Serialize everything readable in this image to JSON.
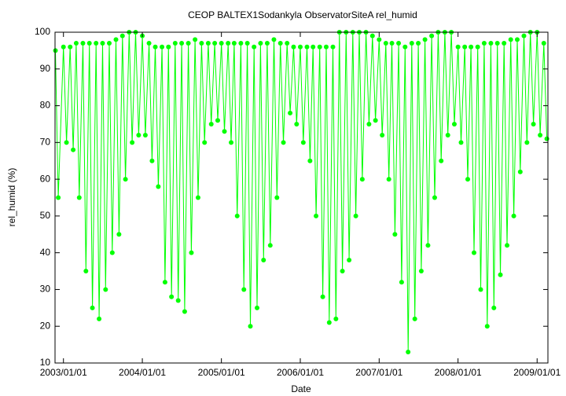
{
  "chart_data": {
    "type": "line",
    "title": "CEOP BALTEX1Sodankyla ObservatorSiteA  rel_humid",
    "xlabel": "Date",
    "ylabel": "rel_humid (%)",
    "xlim": [
      "2002/11/23",
      "2009/02/20"
    ],
    "xticks": [
      "2003/01/01",
      "2004/01/01",
      "2005/01/01",
      "2006/01/01",
      "2007/01/01",
      "2008/01/01",
      "2009/01/01"
    ],
    "ylim": [
      10,
      100
    ],
    "yticks": [
      10,
      20,
      30,
      40,
      50,
      60,
      70,
      80,
      90,
      100
    ],
    "grid": false,
    "series": [
      {
        "name": "rel_humid",
        "color": "#00ff00",
        "x": [
          "2002/11/25",
          "2002/12/08",
          "2003/01/01",
          "2003/01/15",
          "2003/02/01",
          "2003/02/15",
          "2003/03/01",
          "2003/03/15",
          "2003/04/01",
          "2003/04/15",
          "2003/05/01",
          "2003/05/15",
          "2003/06/01",
          "2003/06/15",
          "2003/07/01",
          "2003/07/15",
          "2003/08/01",
          "2003/08/15",
          "2003/09/01",
          "2003/09/15",
          "2003/10/01",
          "2003/10/15",
          "2003/11/01",
          "2003/11/15",
          "2003/12/01",
          "2003/12/15",
          "2004/01/01",
          "2004/01/15",
          "2004/02/01",
          "2004/02/15",
          "2004/03/01",
          "2004/03/15",
          "2004/04/01",
          "2004/04/15",
          "2004/05/01",
          "2004/05/15",
          "2004/06/01",
          "2004/06/15",
          "2004/07/01",
          "2004/07/15",
          "2004/08/01",
          "2004/08/15",
          "2004/09/01",
          "2004/09/15",
          "2004/10/01",
          "2004/10/15",
          "2004/11/01",
          "2004/11/15",
          "2004/12/01",
          "2004/12/15",
          "2005/01/01",
          "2005/01/15",
          "2005/02/01",
          "2005/02/15",
          "2005/03/01",
          "2005/03/15",
          "2005/04/01",
          "2005/04/15",
          "2005/05/01",
          "2005/05/15",
          "2005/06/01",
          "2005/06/15",
          "2005/07/01",
          "2005/07/15",
          "2005/08/01",
          "2005/08/15",
          "2005/09/01",
          "2005/09/15",
          "2005/10/01",
          "2005/10/15",
          "2005/11/01",
          "2005/11/15",
          "2005/12/01",
          "2005/12/15",
          "2006/01/01",
          "2006/01/15",
          "2006/02/01",
          "2006/02/15",
          "2006/03/01",
          "2006/03/15",
          "2006/04/01",
          "2006/04/15",
          "2006/05/01",
          "2006/05/15",
          "2006/06/01",
          "2006/06/15",
          "2006/07/01",
          "2006/07/15",
          "2006/08/01",
          "2006/08/15",
          "2006/09/01",
          "2006/09/15",
          "2006/10/01",
          "2006/10/15",
          "2006/11/01",
          "2006/11/15",
          "2006/12/01",
          "2006/12/15",
          "2007/01/01",
          "2007/01/15",
          "2007/02/01",
          "2007/02/15",
          "2007/03/01",
          "2007/03/15",
          "2007/04/01",
          "2007/04/15",
          "2007/05/01",
          "2007/05/15",
          "2007/06/01",
          "2007/06/15",
          "2007/07/01",
          "2007/07/15",
          "2007/08/01",
          "2007/08/15",
          "2007/09/01",
          "2007/09/15",
          "2007/10/01",
          "2007/10/15",
          "2007/11/01",
          "2007/11/15",
          "2007/12/01",
          "2007/12/15",
          "2008/01/01",
          "2008/01/15",
          "2008/02/01",
          "2008/02/15",
          "2008/03/01",
          "2008/03/15",
          "2008/04/01",
          "2008/04/15",
          "2008/05/01",
          "2008/05/15",
          "2008/06/01",
          "2008/06/15",
          "2008/07/01",
          "2008/07/15",
          "2008/08/01",
          "2008/08/15",
          "2008/09/01",
          "2008/09/15",
          "2008/10/01",
          "2008/10/15",
          "2008/11/01",
          "2008/11/15",
          "2008/12/01",
          "2008/12/15",
          "2009/01/01",
          "2009/01/15",
          "2009/02/01",
          "2009/02/15"
        ],
        "values": [
          95,
          55,
          96,
          70,
          96,
          68,
          97,
          55,
          97,
          35,
          97,
          25,
          97,
          22,
          97,
          30,
          97,
          40,
          98,
          45,
          99,
          60,
          100,
          70,
          100,
          72,
          99,
          72,
          97,
          65,
          96,
          58,
          96,
          32,
          96,
          28,
          97,
          27,
          97,
          24,
          97,
          40,
          98,
          55,
          97,
          70,
          97,
          75,
          97,
          76,
          97,
          73,
          97,
          70,
          97,
          50,
          97,
          30,
          97,
          20,
          96,
          25,
          97,
          38,
          97,
          42,
          98,
          55,
          97,
          70,
          97,
          78,
          96,
          75,
          96,
          70,
          96,
          65,
          96,
          50,
          96,
          28,
          96,
          21,
          96,
          22,
          100,
          35,
          100,
          38,
          100,
          50,
          100,
          60,
          100,
          75,
          99,
          76,
          98,
          72,
          97,
          60,
          97,
          45,
          97,
          32,
          96,
          13,
          97,
          22,
          97,
          35,
          98,
          42,
          99,
          55,
          100,
          65,
          100,
          72,
          100,
          75,
          96,
          70,
          96,
          60,
          96,
          40,
          96,
          30,
          97,
          20,
          97,
          25,
          97,
          34,
          97,
          42,
          98,
          50,
          98,
          62,
          99,
          70,
          100,
          75,
          100,
          72,
          97,
          71
        ]
      }
    ]
  }
}
